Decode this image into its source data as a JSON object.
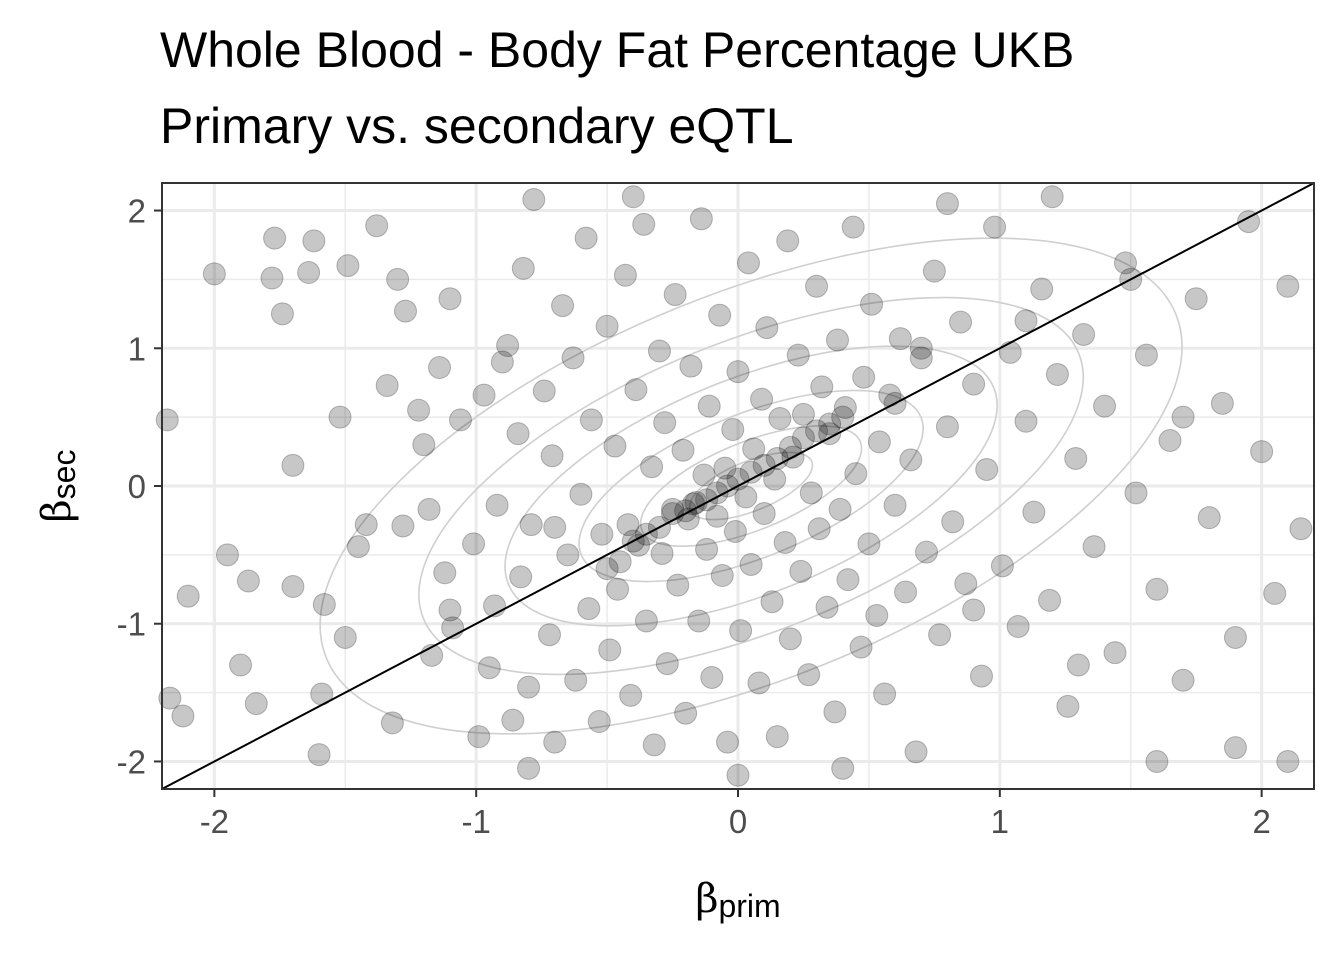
{
  "chart_data": {
    "type": "scatter",
    "title": "Whole Blood - Body Fat Percentage UKB",
    "subtitle": "Primary vs. secondary eQTL",
    "xlabel_symbol": "β",
    "xlabel_subscript": "prim",
    "ylabel_symbol": "β",
    "ylabel_subscript": "sec",
    "xlim": [
      -2.2,
      2.2
    ],
    "ylim": [
      -2.2,
      2.2
    ],
    "xticks": [
      -2,
      -1,
      0,
      1,
      2
    ],
    "yticks": [
      -2,
      -1,
      0,
      1,
      2
    ],
    "tick_labels_x": [
      "-2",
      "-1",
      "0",
      "1",
      "2"
    ],
    "tick_labels_y": [
      "-2",
      "-1",
      "0",
      "1",
      "2"
    ],
    "grid": true,
    "reference_line": {
      "type": "identity",
      "slope": 1,
      "intercept": 0
    },
    "density_contours": true,
    "points": [
      [
        -2.17,
        -1.54
      ],
      [
        -2.12,
        -1.67
      ],
      [
        -2.18,
        0.48
      ],
      [
        -2.0,
        1.54
      ],
      [
        -1.95,
        -0.5
      ],
      [
        -1.87,
        -0.69
      ],
      [
        -1.84,
        -1.58
      ],
      [
        -1.78,
        1.51
      ],
      [
        -1.77,
        1.8
      ],
      [
        -1.74,
        1.25
      ],
      [
        -1.7,
        -0.73
      ],
      [
        -1.64,
        1.55
      ],
      [
        -1.62,
        1.78
      ],
      [
        -1.58,
        -0.86
      ],
      [
        -1.59,
        -1.51
      ],
      [
        -1.52,
        0.5
      ],
      [
        -1.49,
        1.6
      ],
      [
        -1.45,
        -0.44
      ],
      [
        -1.42,
        -0.28
      ],
      [
        -1.38,
        1.89
      ],
      [
        -1.34,
        0.73
      ],
      [
        -1.32,
        -1.72
      ],
      [
        -1.28,
        -0.29
      ],
      [
        -1.27,
        1.27
      ],
      [
        -1.22,
        0.55
      ],
      [
        -1.18,
        -0.17
      ],
      [
        -1.17,
        -1.23
      ],
      [
        -1.14,
        0.86
      ],
      [
        -1.12,
        -0.63
      ],
      [
        -1.1,
        1.36
      ],
      [
        -1.09,
        -1.03
      ],
      [
        -1.06,
        0.48
      ],
      [
        -1.01,
        -0.42
      ],
      [
        -0.99,
        -1.82
      ],
      [
        -0.97,
        0.66
      ],
      [
        -0.95,
        -1.32
      ],
      [
        -0.93,
        -0.87
      ],
      [
        -0.92,
        -0.14
      ],
      [
        -0.88,
        1.02
      ],
      [
        -0.86,
        -1.7
      ],
      [
        -0.84,
        0.38
      ],
      [
        -0.83,
        -0.66
      ],
      [
        -0.82,
        1.58
      ],
      [
        -0.8,
        -1.46
      ],
      [
        -0.79,
        -0.28
      ],
      [
        -0.78,
        2.08
      ],
      [
        -0.74,
        0.69
      ],
      [
        -0.72,
        -1.08
      ],
      [
        -0.71,
        0.22
      ],
      [
        -0.7,
        -1.86
      ],
      [
        -0.67,
        1.31
      ],
      [
        -0.65,
        -0.5
      ],
      [
        -0.63,
        0.93
      ],
      [
        -0.62,
        -1.41
      ],
      [
        -0.6,
        -0.06
      ],
      [
        -0.58,
        1.8
      ],
      [
        -0.57,
        -0.89
      ],
      [
        -0.56,
        0.48
      ],
      [
        -0.53,
        -1.71
      ],
      [
        -0.52,
        -0.35
      ],
      [
        -0.5,
        1.16
      ],
      [
        -0.49,
        -1.19
      ],
      [
        -0.47,
        0.29
      ],
      [
        -0.46,
        -0.75
      ],
      [
        -0.43,
        1.53
      ],
      [
        -0.42,
        -0.28
      ],
      [
        -0.41,
        -1.52
      ],
      [
        -0.39,
        0.7
      ],
      [
        -0.38,
        -0.43
      ],
      [
        -0.36,
        1.9
      ],
      [
        -0.35,
        -0.98
      ],
      [
        -0.33,
        0.14
      ],
      [
        -0.32,
        -1.88
      ],
      [
        -0.3,
        0.98
      ],
      [
        -0.29,
        -0.49
      ],
      [
        -0.28,
        0.46
      ],
      [
        -0.27,
        -1.29
      ],
      [
        -0.25,
        -0.17
      ],
      [
        -0.24,
        1.39
      ],
      [
        -0.23,
        -0.72
      ],
      [
        -0.21,
        0.26
      ],
      [
        -0.2,
        -1.65
      ],
      [
        -0.19,
        -0.24
      ],
      [
        -0.18,
        0.87
      ],
      [
        -0.17,
        -0.13
      ],
      [
        -0.15,
        -0.98
      ],
      [
        -0.14,
        1.94
      ],
      [
        -0.13,
        0.08
      ],
      [
        -0.12,
        -0.46
      ],
      [
        -0.11,
        0.58
      ],
      [
        -0.1,
        -1.39
      ],
      [
        -0.08,
        -0.22
      ],
      [
        -0.07,
        1.24
      ],
      [
        -0.06,
        -0.65
      ],
      [
        -0.05,
        0.13
      ],
      [
        -0.04,
        -1.86
      ],
      [
        -0.02,
        0.41
      ],
      [
        -0.01,
        -0.33
      ],
      [
        0.0,
        0.83
      ],
      [
        0.01,
        -1.05
      ],
      [
        0.03,
        -0.08
      ],
      [
        0.04,
        1.62
      ],
      [
        0.05,
        -0.57
      ],
      [
        0.06,
        0.27
      ],
      [
        0.08,
        -1.43
      ],
      [
        0.09,
        0.63
      ],
      [
        0.1,
        -0.2
      ],
      [
        0.11,
        1.15
      ],
      [
        0.13,
        -0.84
      ],
      [
        0.14,
        0.05
      ],
      [
        0.15,
        -1.82
      ],
      [
        0.16,
        0.49
      ],
      [
        0.18,
        -0.41
      ],
      [
        0.19,
        1.78
      ],
      [
        0.2,
        -1.11
      ],
      [
        0.21,
        0.21
      ],
      [
        0.23,
        0.95
      ],
      [
        0.24,
        -0.62
      ],
      [
        0.25,
        0.52
      ],
      [
        0.27,
        -1.37
      ],
      [
        0.28,
        -0.05
      ],
      [
        0.3,
        1.45
      ],
      [
        0.31,
        -0.31
      ],
      [
        0.32,
        0.72
      ],
      [
        0.34,
        -0.88
      ],
      [
        0.35,
        0.38
      ],
      [
        0.37,
        -1.64
      ],
      [
        0.38,
        1.06
      ],
      [
        0.39,
        -0.17
      ],
      [
        0.41,
        0.57
      ],
      [
        0.42,
        -0.68
      ],
      [
        0.44,
        1.88
      ],
      [
        0.45,
        0.09
      ],
      [
        0.47,
        -1.17
      ],
      [
        0.48,
        0.79
      ],
      [
        0.5,
        -0.42
      ],
      [
        0.51,
        1.32
      ],
      [
        0.53,
        -0.94
      ],
      [
        0.54,
        0.32
      ],
      [
        0.56,
        -1.51
      ],
      [
        0.58,
        0.66
      ],
      [
        0.6,
        -0.14
      ],
      [
        0.62,
        1.07
      ],
      [
        0.64,
        -0.77
      ],
      [
        0.66,
        0.19
      ],
      [
        0.68,
        -1.93
      ],
      [
        0.7,
        0.93
      ],
      [
        0.72,
        -0.48
      ],
      [
        0.75,
        1.56
      ],
      [
        0.77,
        -1.08
      ],
      [
        0.8,
        0.43
      ],
      [
        0.82,
        -0.26
      ],
      [
        0.85,
        1.19
      ],
      [
        0.87,
        -0.71
      ],
      [
        0.9,
        0.74
      ],
      [
        0.93,
        -1.38
      ],
      [
        0.95,
        0.12
      ],
      [
        0.98,
        1.88
      ],
      [
        1.01,
        -0.58
      ],
      [
        1.04,
        0.97
      ],
      [
        1.07,
        -1.02
      ],
      [
        1.1,
        0.47
      ],
      [
        1.13,
        -0.19
      ],
      [
        1.16,
        1.43
      ],
      [
        1.19,
        -0.83
      ],
      [
        1.22,
        0.81
      ],
      [
        1.26,
        -1.6
      ],
      [
        1.29,
        0.2
      ],
      [
        1.32,
        1.1
      ],
      [
        1.36,
        -0.44
      ],
      [
        1.4,
        0.58
      ],
      [
        1.44,
        -1.21
      ],
      [
        1.48,
        1.62
      ],
      [
        1.52,
        -0.05
      ],
      [
        1.56,
        0.95
      ],
      [
        1.6,
        -0.75
      ],
      [
        1.65,
        0.33
      ],
      [
        1.7,
        -1.41
      ],
      [
        1.75,
        1.36
      ],
      [
        1.8,
        -0.23
      ],
      [
        1.85,
        0.6
      ],
      [
        1.9,
        -1.1
      ],
      [
        1.95,
        1.92
      ],
      [
        2.0,
        0.25
      ],
      [
        2.05,
        -0.78
      ],
      [
        2.1,
        1.45
      ],
      [
        2.15,
        -0.31
      ],
      [
        -1.9,
        -1.3
      ],
      [
        -1.7,
        0.15
      ],
      [
        -1.5,
        -1.1
      ],
      [
        -1.3,
        1.5
      ],
      [
        -1.1,
        -0.9
      ],
      [
        -0.9,
        0.9
      ],
      [
        -0.7,
        -0.3
      ],
      [
        -0.5,
        -0.6
      ],
      [
        -0.45,
        -0.55
      ],
      [
        -0.4,
        -0.4
      ],
      [
        -0.35,
        -0.35
      ],
      [
        -0.3,
        -0.3
      ],
      [
        -0.25,
        -0.2
      ],
      [
        -0.2,
        -0.18
      ],
      [
        -0.16,
        -0.12
      ],
      [
        -0.12,
        -0.1
      ],
      [
        -0.08,
        -0.05
      ],
      [
        -0.04,
        0.0
      ],
      [
        0.0,
        0.05
      ],
      [
        0.05,
        0.1
      ],
      [
        0.1,
        0.15
      ],
      [
        0.15,
        0.2
      ],
      [
        0.2,
        0.28
      ],
      [
        0.25,
        0.35
      ],
      [
        0.3,
        0.4
      ],
      [
        0.35,
        0.45
      ],
      [
        0.4,
        0.5
      ],
      [
        0.6,
        0.6
      ],
      [
        0.7,
        1.0
      ],
      [
        0.9,
        -0.9
      ],
      [
        1.1,
        1.2
      ],
      [
        1.3,
        -1.3
      ],
      [
        1.5,
        1.5
      ],
      [
        1.7,
        0.5
      ],
      [
        1.9,
        -1.9
      ],
      [
        2.1,
        -2.0
      ],
      [
        -2.1,
        -0.8
      ],
      [
        -1.6,
        -1.95
      ],
      [
        -1.2,
        0.3
      ],
      [
        -0.8,
        -2.05
      ],
      [
        -0.4,
        2.1
      ],
      [
        0.0,
        -2.1
      ],
      [
        0.4,
        -2.05
      ],
      [
        0.8,
        2.05
      ],
      [
        1.2,
        2.1
      ],
      [
        1.6,
        -2.0
      ]
    ]
  }
}
